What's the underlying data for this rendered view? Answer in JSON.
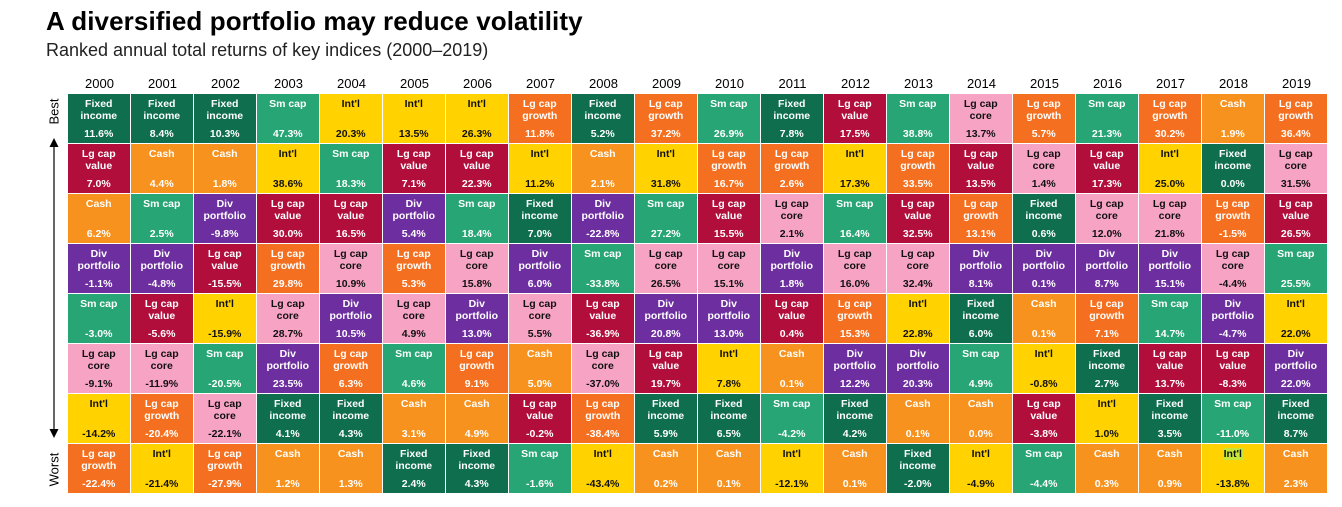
{
  "title": "A diversified portfolio may reduce volatility",
  "subtitle": "Ranked annual total returns of key indices (2000–2019)",
  "axis_best": "Best",
  "axis_worst": "Worst",
  "colors": {
    "Fixed income": "#0e6e4e",
    "Cash": "#f7921e",
    "Sm cap": "#27a575",
    "Int'l": "#ffd200",
    "Lg cap growth": "#f46f1f",
    "Lg cap value": "#b10e3b",
    "Div portfolio": "#6d2ea0",
    "Lg cap core": "#f7a3c4",
    "highlight": "#c8e63a"
  },
  "chart_data": {
    "type": "table",
    "title": "A diversified portfolio may reduce volatility",
    "subtitle": "Ranked annual total returns of key indices (2000–2019)",
    "ylabel_top": "Best",
    "ylabel_bottom": "Worst",
    "years": [
      "2000",
      "2001",
      "2002",
      "2003",
      "2004",
      "2005",
      "2006",
      "2007",
      "2008",
      "2009",
      "2010",
      "2011",
      "2012",
      "2013",
      "2014",
      "2015",
      "2016",
      "2017",
      "2018",
      "2019"
    ],
    "columns": [
      [
        [
          "Fixed income",
          "11.6%"
        ],
        [
          "Lg cap value",
          "7.0%"
        ],
        [
          "Cash",
          "6.2%"
        ],
        [
          "Div portfolio",
          "-1.1%"
        ],
        [
          "Sm cap",
          "-3.0%"
        ],
        [
          "Lg cap core",
          "-9.1%"
        ],
        [
          "Int'l",
          "-14.2%"
        ],
        [
          "Lg cap growth",
          "-22.4%"
        ]
      ],
      [
        [
          "Fixed income",
          "8.4%"
        ],
        [
          "Cash",
          "4.4%"
        ],
        [
          "Sm cap",
          "2.5%"
        ],
        [
          "Div portfolio",
          "-4.8%"
        ],
        [
          "Lg cap value",
          "-5.6%"
        ],
        [
          "Lg cap core",
          "-11.9%"
        ],
        [
          "Lg cap growth",
          "-20.4%"
        ],
        [
          "Int'l",
          "-21.4%"
        ]
      ],
      [
        [
          "Fixed income",
          "10.3%"
        ],
        [
          "Cash",
          "1.8%"
        ],
        [
          "Div portfolio",
          "-9.8%"
        ],
        [
          "Lg cap value",
          "-15.5%"
        ],
        [
          "Int'l",
          "-15.9%"
        ],
        [
          "Sm cap",
          "-20.5%"
        ],
        [
          "Lg cap core",
          "-22.1%"
        ],
        [
          "Lg cap growth",
          "-27.9%"
        ]
      ],
      [
        [
          "Sm cap",
          "47.3%"
        ],
        [
          "Int'l",
          "38.6%"
        ],
        [
          "Lg cap value",
          "30.0%"
        ],
        [
          "Lg cap growth",
          "29.8%"
        ],
        [
          "Lg cap core",
          "28.7%"
        ],
        [
          "Div portfolio",
          "23.5%"
        ],
        [
          "Fixed income",
          "4.1%"
        ],
        [
          "Cash",
          "1.2%"
        ]
      ],
      [
        [
          "Int'l",
          "20.3%"
        ],
        [
          "Sm cap",
          "18.3%"
        ],
        [
          "Lg cap value",
          "16.5%"
        ],
        [
          "Lg cap core",
          "10.9%"
        ],
        [
          "Div portfolio",
          "10.5%"
        ],
        [
          "Lg cap growth",
          "6.3%"
        ],
        [
          "Fixed income",
          "4.3%"
        ],
        [
          "Cash",
          "1.3%"
        ]
      ],
      [
        [
          "Int'l",
          "13.5%"
        ],
        [
          "Lg cap value",
          "7.1%"
        ],
        [
          "Div portfolio",
          "5.4%"
        ],
        [
          "Lg cap growth",
          "5.3%"
        ],
        [
          "Lg cap core",
          "4.9%"
        ],
        [
          "Sm cap",
          "4.6%"
        ],
        [
          "Cash",
          "3.1%"
        ],
        [
          "Fixed income",
          "2.4%"
        ]
      ],
      [
        [
          "Int'l",
          "26.3%"
        ],
        [
          "Lg cap value",
          "22.3%"
        ],
        [
          "Sm cap",
          "18.4%"
        ],
        [
          "Lg cap core",
          "15.8%"
        ],
        [
          "Div portfolio",
          "13.0%"
        ],
        [
          "Lg cap growth",
          "9.1%"
        ],
        [
          "Cash",
          "4.9%"
        ],
        [
          "Fixed income",
          "4.3%"
        ]
      ],
      [
        [
          "Lg cap growth",
          "11.8%"
        ],
        [
          "Int'l",
          "11.2%"
        ],
        [
          "Fixed income",
          "7.0%"
        ],
        [
          "Div portfolio",
          "6.0%"
        ],
        [
          "Lg cap core",
          "5.5%"
        ],
        [
          "Cash",
          "5.0%"
        ],
        [
          "Lg cap value",
          "-0.2%"
        ],
        [
          "Sm cap",
          "-1.6%"
        ]
      ],
      [
        [
          "Fixed income",
          "5.2%"
        ],
        [
          "Cash",
          "2.1%"
        ],
        [
          "Div portfolio",
          "-22.8%"
        ],
        [
          "Sm cap",
          "-33.8%"
        ],
        [
          "Lg cap value",
          "-36.9%"
        ],
        [
          "Lg cap core",
          "-37.0%"
        ],
        [
          "Lg cap growth",
          "-38.4%"
        ],
        [
          "Int'l",
          "-43.4%"
        ]
      ],
      [
        [
          "Lg cap growth",
          "37.2%"
        ],
        [
          "Int'l",
          "31.8%"
        ],
        [
          "Sm cap",
          "27.2%"
        ],
        [
          "Lg cap core",
          "26.5%"
        ],
        [
          "Div portfolio",
          "20.8%"
        ],
        [
          "Lg cap value",
          "19.7%"
        ],
        [
          "Fixed income",
          "5.9%"
        ],
        [
          "Cash",
          "0.2%"
        ]
      ],
      [
        [
          "Sm cap",
          "26.9%"
        ],
        [
          "Lg cap growth",
          "16.7%"
        ],
        [
          "Lg cap value",
          "15.5%"
        ],
        [
          "Lg cap core",
          "15.1%"
        ],
        [
          "Div portfolio",
          "13.0%"
        ],
        [
          "Int'l",
          "7.8%"
        ],
        [
          "Fixed income",
          "6.5%"
        ],
        [
          "Cash",
          "0.1%"
        ]
      ],
      [
        [
          "Fixed income",
          "7.8%"
        ],
        [
          "Lg cap growth",
          "2.6%"
        ],
        [
          "Lg cap core",
          "2.1%"
        ],
        [
          "Div portfolio",
          "1.8%"
        ],
        [
          "Lg cap value",
          "0.4%"
        ],
        [
          "Cash",
          "0.1%"
        ],
        [
          "Sm cap",
          "-4.2%"
        ],
        [
          "Int'l",
          "-12.1%"
        ]
      ],
      [
        [
          "Lg cap value",
          "17.5%"
        ],
        [
          "Int'l",
          "17.3%"
        ],
        [
          "Sm cap",
          "16.4%"
        ],
        [
          "Lg cap core",
          "16.0%"
        ],
        [
          "Lg cap growth",
          "15.3%"
        ],
        [
          "Div portfolio",
          "12.2%"
        ],
        [
          "Fixed income",
          "4.2%"
        ],
        [
          "Cash",
          "0.1%"
        ]
      ],
      [
        [
          "Sm cap",
          "38.8%"
        ],
        [
          "Lg cap growth",
          "33.5%"
        ],
        [
          "Lg cap value",
          "32.5%"
        ],
        [
          "Lg cap core",
          "32.4%"
        ],
        [
          "Int'l",
          "22.8%"
        ],
        [
          "Div portfolio",
          "20.3%"
        ],
        [
          "Cash",
          "0.1%"
        ],
        [
          "Fixed income",
          "-2.0%"
        ]
      ],
      [
        [
          "Lg cap core",
          "13.7%"
        ],
        [
          "Lg cap value",
          "13.5%"
        ],
        [
          "Lg cap growth",
          "13.1%"
        ],
        [
          "Div portfolio",
          "8.1%"
        ],
        [
          "Fixed income",
          "6.0%"
        ],
        [
          "Sm cap",
          "4.9%"
        ],
        [
          "Cash",
          "0.0%"
        ],
        [
          "Int'l",
          "-4.9%"
        ]
      ],
      [
        [
          "Lg cap growth",
          "5.7%"
        ],
        [
          "Lg cap core",
          "1.4%"
        ],
        [
          "Fixed income",
          "0.6%"
        ],
        [
          "Div portfolio",
          "0.1%"
        ],
        [
          "Cash",
          "0.1%"
        ],
        [
          "Int'l",
          "-0.8%"
        ],
        [
          "Lg cap value",
          "-3.8%"
        ],
        [
          "Sm cap",
          "-4.4%"
        ]
      ],
      [
        [
          "Sm cap",
          "21.3%"
        ],
        [
          "Lg cap value",
          "17.3%"
        ],
        [
          "Lg cap core",
          "12.0%"
        ],
        [
          "Div portfolio",
          "8.7%"
        ],
        [
          "Lg cap growth",
          "7.1%"
        ],
        [
          "Fixed income",
          "2.7%"
        ],
        [
          "Int'l",
          "1.0%"
        ],
        [
          "Cash",
          "0.3%"
        ]
      ],
      [
        [
          "Lg cap growth",
          "30.2%"
        ],
        [
          "Int'l",
          "25.0%"
        ],
        [
          "Lg cap core",
          "21.8%"
        ],
        [
          "Div portfolio",
          "15.1%"
        ],
        [
          "Sm cap",
          "14.7%"
        ],
        [
          "Lg cap value",
          "13.7%"
        ],
        [
          "Fixed income",
          "3.5%"
        ],
        [
          "Cash",
          "0.9%"
        ]
      ],
      [
        [
          "Cash",
          "1.9%"
        ],
        [
          "Fixed income",
          "0.0%"
        ],
        [
          "Lg cap growth",
          "-1.5%"
        ],
        [
          "Lg cap core",
          "-4.4%"
        ],
        [
          "Div portfolio",
          "-4.7%"
        ],
        [
          "Lg cap value",
          "-8.3%"
        ],
        [
          "Sm cap",
          "-11.0%"
        ],
        [
          "Int'l",
          "-13.8%"
        ]
      ],
      [
        [
          "Lg cap growth",
          "36.4%"
        ],
        [
          "Lg cap core",
          "31.5%"
        ],
        [
          "Lg cap value",
          "26.5%"
        ],
        [
          "Sm cap",
          "25.5%"
        ],
        [
          "Int'l",
          "22.0%"
        ],
        [
          "Div portfolio",
          "22.0%"
        ],
        [
          "Fixed income",
          "8.7%"
        ],
        [
          "Cash",
          "2.3%"
        ]
      ]
    ],
    "highlighted_cells": [
      [
        18,
        7
      ]
    ]
  }
}
